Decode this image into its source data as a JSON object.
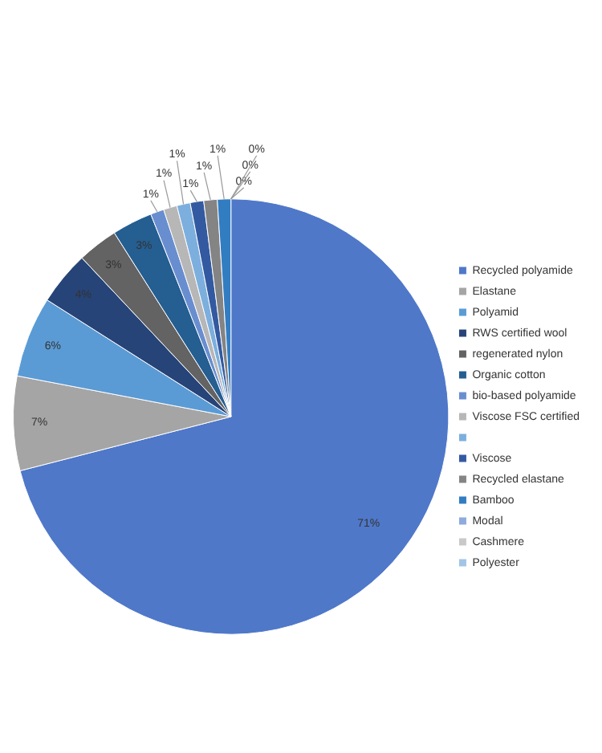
{
  "chart_data": {
    "type": "pie",
    "categories": [
      "Recycled polyamide",
      "Elastane",
      "Polyamid",
      "RWS certified wool",
      "regenerated nylon",
      "Organic cotton",
      "bio-based polyamide",
      "Viscose FSC certified",
      null,
      "Viscose",
      "Recycled elastane",
      "Bamboo",
      "Modal",
      "Cashmere",
      "Polyester"
    ],
    "values": [
      71,
      7,
      6,
      4,
      3,
      3,
      1,
      1,
      1,
      1,
      1,
      1,
      0,
      0,
      0
    ],
    "value_labels": [
      "71%",
      "7%",
      "6%",
      "4%",
      "3%",
      "3%",
      "1%",
      "1%",
      "1%",
      "1%",
      "1%",
      "1%",
      "0%",
      "0%",
      "0%"
    ],
    "colors": [
      "#4f78c9",
      "#a5a5a5",
      "#5b9bd5",
      "#264478",
      "#636363",
      "#255e91",
      "#698ed0",
      "#b7b7b7",
      "#7cafdd",
      "#335aa1",
      "#848484",
      "#327dc2",
      "#8faadc",
      "#c9c9c9",
      "#a2c4e6"
    ],
    "legend": "right"
  }
}
